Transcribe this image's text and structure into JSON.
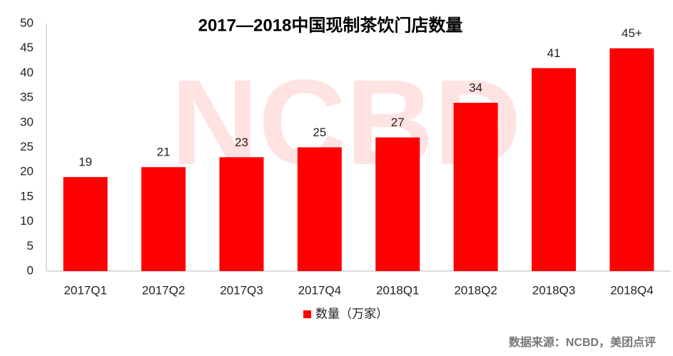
{
  "chart_data": {
    "type": "bar",
    "title": "2017—2018中国现制茶饮门店数量",
    "categories": [
      "2017Q1",
      "2017Q2",
      "2017Q3",
      "2017Q4",
      "2018Q1",
      "2018Q2",
      "2018Q3",
      "2018Q4"
    ],
    "series": [
      {
        "name": "数量（万家）",
        "color": "#ff0000",
        "values": [
          19,
          21,
          23,
          25,
          27,
          34,
          41,
          45
        ],
        "value_labels": [
          "19",
          "21",
          "23",
          "25",
          "27",
          "34",
          "41",
          "45+"
        ]
      }
    ],
    "ylim": [
      0,
      50
    ],
    "yticks": [
      0,
      5,
      10,
      15,
      20,
      25,
      30,
      35,
      40,
      45,
      50
    ],
    "grid": false,
    "legend": "bottom",
    "watermark": "NCBD",
    "source": "数据来源：NCBD，美团点评"
  }
}
